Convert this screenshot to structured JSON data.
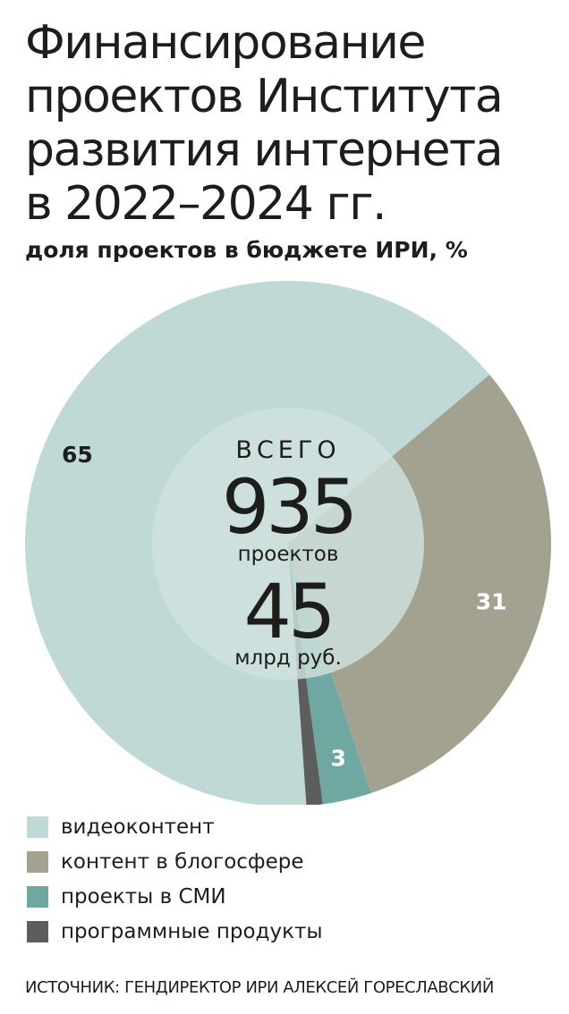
{
  "title_lines": [
    "Финансирование",
    "проектов Института",
    "развития интернета",
    "в 2022–2024 гг."
  ],
  "subtitle": "доля проектов в бюджете ИРИ, %",
  "chart_data": {
    "type": "pie",
    "title": "Финансирование проектов Института развития интернета в 2022–2024 гг.",
    "subtitle": "доля проектов в бюджете ИРИ, %",
    "slices": [
      {
        "label": "видеоконтент",
        "value": 65,
        "color": "#c0d9d6"
      },
      {
        "label": "контент в блогосфере",
        "value": 31,
        "color": "#a3a291"
      },
      {
        "label": "проекты в СМИ",
        "value": 3,
        "color": "#6fa8a1"
      },
      {
        "label": "программные продукты",
        "value": 1,
        "color": "#5d5d5d"
      }
    ],
    "center": {
      "top_label": "ВСЕГО",
      "projects_value": "935",
      "projects_label": "проектов",
      "budget_value": "45",
      "budget_label": "млрд руб."
    }
  },
  "source": "ИСТОЧНИК: ГЕНДИРЕКТОР ИРИ АЛЕКСЕЙ ГОРЕСЛАВСКИЙ"
}
